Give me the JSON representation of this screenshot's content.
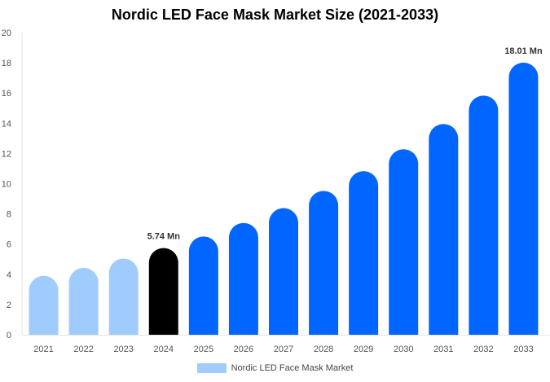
{
  "chart_data": {
    "type": "bar",
    "title": "Nordic LED Face Mask Market Size (2021-2033)",
    "categories": [
      "2021",
      "2022",
      "2023",
      "2024",
      "2025",
      "2026",
      "2027",
      "2028",
      "2029",
      "2030",
      "2031",
      "2032",
      "2033"
    ],
    "series": [
      {
        "name": "Nordic LED Face Mask Market",
        "values": [
          3.9,
          4.43,
          5.04,
          5.74,
          6.5,
          7.4,
          8.38,
          9.52,
          10.83,
          12.28,
          13.95,
          15.83,
          18.01
        ]
      }
    ],
    "data_labels": {
      "2024": "5.74 Mn",
      "2033": "18.01 Mn"
    },
    "bar_colors": {
      "historical": "#a0cbfd",
      "current": "#000000",
      "forecast": "#0066ff"
    },
    "bar_color_by_year": [
      "historical",
      "historical",
      "historical",
      "current",
      "forecast",
      "forecast",
      "forecast",
      "forecast",
      "forecast",
      "forecast",
      "forecast",
      "forecast",
      "forecast"
    ],
    "yticks": [
      0,
      2,
      4,
      6,
      8,
      10,
      12,
      14,
      16,
      18,
      20
    ],
    "ylim": [
      0,
      20
    ],
    "xlabel": "",
    "ylabel": "",
    "grid": false,
    "legend_position": "bottom"
  }
}
